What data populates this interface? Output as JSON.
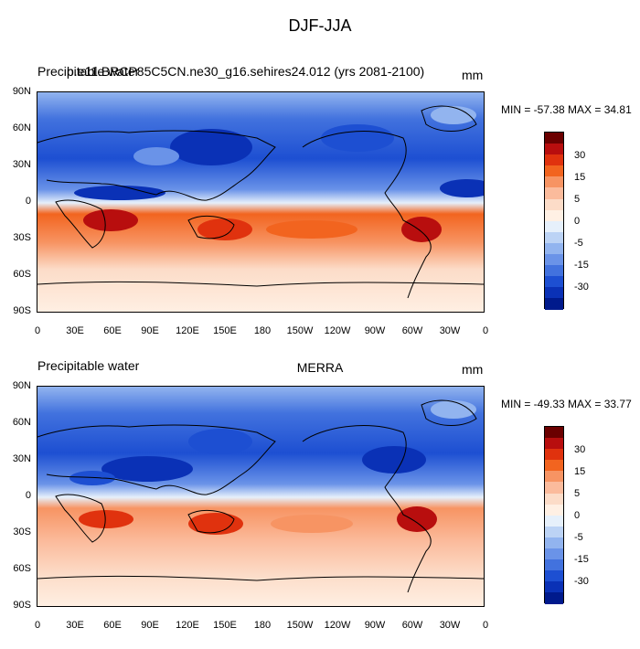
{
  "title": "DJF-JJA",
  "panels": [
    {
      "left_label": "Precipitable water",
      "case_label": "b.e11.BRCP85C5CN.ne30_g16.sehires24.012 (yrs 2081-2100)",
      "center_label": "",
      "units": "mm",
      "minmax": "MIN = -57.38 MAX =  34.81"
    },
    {
      "left_label": "Precipitable water",
      "case_label": "",
      "center_label": "MERRA",
      "units": "mm",
      "minmax": "MIN = -49.33 MAX =  33.77"
    }
  ],
  "axes": {
    "lat_ticks": [
      "90N",
      "60N",
      "30N",
      "0",
      "30S",
      "60S",
      "90S"
    ],
    "lon_ticks": [
      "0",
      "30E",
      "60E",
      "90E",
      "120E",
      "150E",
      "180",
      "150W",
      "120W",
      "90W",
      "60W",
      "30W",
      "0"
    ]
  },
  "colorbar": {
    "labels": [
      "30",
      "15",
      "5",
      "0",
      "-5",
      "-15",
      "-30"
    ],
    "colors": [
      "#6b0000",
      "#b80e0e",
      "#e0320e",
      "#f2641f",
      "#f79463",
      "#fbbb9c",
      "#fcdcc8",
      "#fff0e4",
      "#e6f0fb",
      "#bcd3f5",
      "#92b4ef",
      "#6a93e8",
      "#4272de",
      "#1d4fd2",
      "#0a31b6",
      "#001a8c"
    ]
  },
  "chart_data": [
    {
      "type": "heatmap",
      "title": "DJF-JJA",
      "subtitle": "b.e11.BRCP85C5CN.ne30_g16.sehires24.012 (yrs 2081-2100)",
      "variable": "Precipitable water",
      "units": "mm",
      "min": -57.38,
      "max": 34.81,
      "xlim": [
        0,
        360
      ],
      "ylim": [
        -90,
        90
      ]
    },
    {
      "type": "heatmap",
      "title": "MERRA",
      "variable": "Precipitable water",
      "units": "mm",
      "min": -49.33,
      "max": 33.77,
      "xlim": [
        0,
        360
      ],
      "ylim": [
        -90,
        90
      ]
    }
  ]
}
